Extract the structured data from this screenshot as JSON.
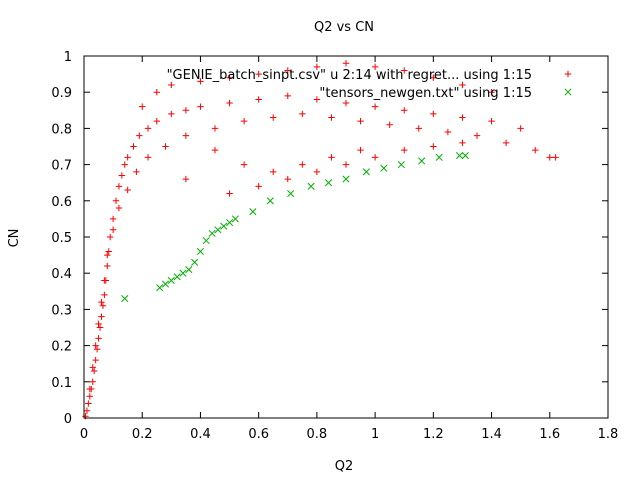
{
  "chart_data": {
    "type": "scatter",
    "title": "Q2 vs CN",
    "xlabel": "Q2",
    "ylabel": "CN",
    "xlim": [
      0,
      1.8
    ],
    "ylim": [
      0,
      1
    ],
    "xticks": [
      "0",
      "0.2",
      "0.4",
      "0.6",
      "0.8",
      "1",
      "1.2",
      "1.4",
      "1.6",
      "1.8"
    ],
    "yticks": [
      "0",
      "0.1",
      "0.2",
      "0.3",
      "0.4",
      "0.5",
      "0.6",
      "0.7",
      "0.8",
      "0.9",
      "1"
    ],
    "grid": false,
    "legend_position": "top-right",
    "series": [
      {
        "name": "\"GENIE_batch_sinpt.csv\" u 2:14 with regret... using 1:15",
        "marker": "plus",
        "color": "#ff0000",
        "points": [
          [
            0.005,
            0.005
          ],
          [
            0.01,
            0.02
          ],
          [
            0.015,
            0.04
          ],
          [
            0.02,
            0.06
          ],
          [
            0.025,
            0.08
          ],
          [
            0.03,
            0.1
          ],
          [
            0.035,
            0.13
          ],
          [
            0.04,
            0.16
          ],
          [
            0.045,
            0.19
          ],
          [
            0.05,
            0.22
          ],
          [
            0.055,
            0.25
          ],
          [
            0.06,
            0.28
          ],
          [
            0.065,
            0.31
          ],
          [
            0.07,
            0.34
          ],
          [
            0.075,
            0.38
          ],
          [
            0.08,
            0.42
          ],
          [
            0.085,
            0.46
          ],
          [
            0.09,
            0.5
          ],
          [
            0.1,
            0.55
          ],
          [
            0.11,
            0.6
          ],
          [
            0.12,
            0.64
          ],
          [
            0.13,
            0.67
          ],
          [
            0.14,
            0.7
          ],
          [
            0.15,
            0.72
          ],
          [
            0.17,
            0.75
          ],
          [
            0.19,
            0.78
          ],
          [
            0.22,
            0.8
          ],
          [
            0.25,
            0.82
          ],
          [
            0.3,
            0.84
          ],
          [
            0.35,
            0.85
          ],
          [
            0.4,
            0.86
          ],
          [
            0.5,
            0.87
          ],
          [
            0.6,
            0.88
          ],
          [
            0.7,
            0.89
          ],
          [
            0.8,
            0.88
          ],
          [
            0.9,
            0.87
          ],
          [
            1.0,
            0.86
          ],
          [
            1.1,
            0.85
          ],
          [
            1.2,
            0.84
          ],
          [
            1.3,
            0.83
          ],
          [
            1.4,
            0.82
          ],
          [
            1.5,
            0.8
          ],
          [
            1.6,
            0.72
          ],
          [
            1.62,
            0.72
          ],
          [
            1.55,
            0.74
          ],
          [
            1.45,
            0.76
          ],
          [
            1.35,
            0.78
          ],
          [
            1.25,
            0.79
          ],
          [
            1.15,
            0.8
          ],
          [
            1.05,
            0.81
          ],
          [
            0.95,
            0.82
          ],
          [
            0.85,
            0.83
          ],
          [
            0.75,
            0.84
          ],
          [
            0.65,
            0.83
          ],
          [
            0.55,
            0.82
          ],
          [
            0.45,
            0.8
          ],
          [
            0.35,
            0.78
          ],
          [
            0.28,
            0.75
          ],
          [
            0.22,
            0.72
          ],
          [
            0.18,
            0.68
          ],
          [
            0.15,
            0.63
          ],
          [
            0.12,
            0.58
          ],
          [
            0.1,
            0.52
          ],
          [
            0.08,
            0.45
          ],
          [
            0.07,
            0.38
          ],
          [
            0.06,
            0.32
          ],
          [
            0.05,
            0.26
          ],
          [
            0.04,
            0.2
          ],
          [
            0.03,
            0.14
          ],
          [
            0.02,
            0.08
          ],
          [
            0.25,
            0.9
          ],
          [
            0.3,
            0.92
          ],
          [
            0.4,
            0.93
          ],
          [
            0.5,
            0.94
          ],
          [
            0.6,
            0.95
          ],
          [
            0.7,
            0.96
          ],
          [
            0.8,
            0.97
          ],
          [
            0.9,
            0.98
          ],
          [
            1.0,
            0.97
          ],
          [
            1.1,
            0.96
          ],
          [
            1.2,
            0.94
          ],
          [
            1.3,
            0.92
          ],
          [
            1.4,
            0.9
          ],
          [
            0.2,
            0.86
          ],
          [
            0.45,
            0.74
          ],
          [
            0.55,
            0.7
          ],
          [
            0.65,
            0.68
          ],
          [
            0.75,
            0.7
          ],
          [
            0.85,
            0.72
          ],
          [
            0.95,
            0.74
          ],
          [
            0.35,
            0.66
          ],
          [
            0.5,
            0.62
          ],
          [
            0.6,
            0.64
          ],
          [
            0.7,
            0.66
          ],
          [
            0.8,
            0.68
          ],
          [
            0.9,
            0.7
          ],
          [
            1.0,
            0.72
          ],
          [
            1.1,
            0.74
          ],
          [
            1.2,
            0.75
          ],
          [
            1.3,
            0.76
          ]
        ]
      },
      {
        "name": "\"tensors_newgen.txt\" using 1:15",
        "marker": "x",
        "color": "#00b000",
        "points": [
          [
            0.14,
            0.33
          ],
          [
            0.26,
            0.36
          ],
          [
            0.28,
            0.37
          ],
          [
            0.3,
            0.38
          ],
          [
            0.32,
            0.39
          ],
          [
            0.34,
            0.4
          ],
          [
            0.36,
            0.41
          ],
          [
            0.38,
            0.43
          ],
          [
            0.4,
            0.46
          ],
          [
            0.42,
            0.49
          ],
          [
            0.44,
            0.51
          ],
          [
            0.46,
            0.52
          ],
          [
            0.48,
            0.53
          ],
          [
            0.5,
            0.54
          ],
          [
            0.52,
            0.55
          ],
          [
            0.58,
            0.57
          ],
          [
            0.64,
            0.6
          ],
          [
            0.71,
            0.62
          ],
          [
            0.78,
            0.64
          ],
          [
            0.84,
            0.65
          ],
          [
            0.9,
            0.66
          ],
          [
            0.97,
            0.68
          ],
          [
            1.03,
            0.69
          ],
          [
            1.09,
            0.7
          ],
          [
            1.16,
            0.71
          ],
          [
            1.22,
            0.72
          ],
          [
            1.29,
            0.725
          ],
          [
            1.31,
            0.725
          ]
        ]
      }
    ]
  }
}
